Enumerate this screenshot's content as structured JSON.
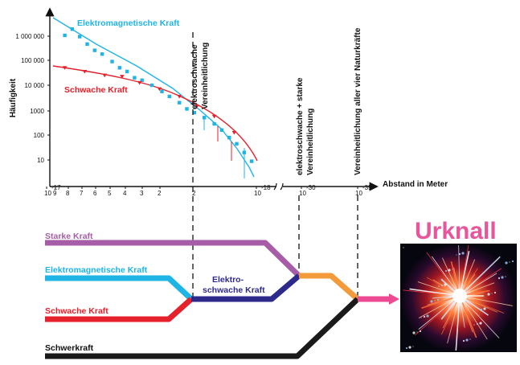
{
  "colors": {
    "em": "#1fb4e6",
    "weak": "#e5212b",
    "strong": "#a65ca6",
    "electroweak": "#2e2a8c",
    "gut": "#f39a3a",
    "toe": "#ec4a93",
    "gravity": "#1a1a1a",
    "urknall": "#e8559a"
  },
  "chart_data": {
    "type": "scatter",
    "ylabel": "Häufigkeit",
    "xlabel": "Abstand in Meter",
    "y_scale": "log",
    "y_ticks": [
      "1 000 000",
      "100 000",
      "10 000",
      "1000",
      "100",
      "10"
    ],
    "x_ticks": [
      {
        "base": "10",
        "exp": "-17"
      },
      {
        "base": "9",
        "exp": ""
      },
      {
        "base": "8",
        "exp": ""
      },
      {
        "base": "7",
        "exp": ""
      },
      {
        "base": "6",
        "exp": ""
      },
      {
        "base": "5",
        "exp": ""
      },
      {
        "base": "4",
        "exp": ""
      },
      {
        "base": "3",
        "exp": ""
      },
      {
        "base": "2",
        "exp": ""
      },
      {
        "base": "10",
        "exp": "-18"
      },
      {
        "base": "10",
        "exp": "-30"
      },
      {
        "base": "10",
        "exp": "-35"
      }
    ],
    "series": [
      {
        "name": "Elektromagnetische Kraft",
        "marker": "square",
        "x": [
          1.3,
          1.45,
          1.6,
          1.75,
          1.9,
          2.05,
          2.25,
          2.4,
          2.55,
          2.7,
          2.85,
          3.05,
          3.25,
          3.4,
          3.6,
          3.75,
          3.9,
          4.1,
          4.3,
          4.45,
          4.6,
          4.75,
          4.9,
          5.05
        ],
        "y": [
          6.0,
          6.25,
          5.95,
          5.65,
          5.4,
          5.25,
          4.95,
          4.7,
          4.55,
          4.3,
          4.2,
          4.0,
          3.75,
          3.55,
          3.3,
          3.05,
          2.9,
          2.7,
          2.45,
          2.2,
          1.9,
          1.65,
          1.3,
          0.95
        ]
      },
      {
        "name": "Schwache Kraft",
        "marker": "triangle",
        "x": [
          1.3,
          1.7,
          2.1,
          2.45,
          2.8,
          3.2,
          3.6,
          3.95,
          4.3,
          4.7
        ],
        "y": [
          4.7,
          4.55,
          4.4,
          4.35,
          4.1,
          3.85,
          3.55,
          3.15,
          2.75,
          2.1
        ]
      }
    ]
  },
  "annotations": {
    "em_curve": "Elektromagnetische Kraft",
    "weak_curve": "Schwache Kraft",
    "ew_unif_1": "elektroschwache",
    "ew_unif_2": "Vereinheitlichung",
    "gut_1": "elektroschwache + starke",
    "gut_2": "Vereinheitlichung",
    "toe": "Vereinheitlichung aller vier Naturkräfte"
  },
  "forces": {
    "strong": "Starke Kraft",
    "em": "Elektromagnetische Kraft",
    "weak": "Schwache Kraft",
    "gravity": "Schwerkraft",
    "electroweak_1": "Elektro-",
    "electroweak_2": "schwache Kraft"
  },
  "urknall": "Urknall",
  "burst_icon": "big-bang-burst-icon"
}
